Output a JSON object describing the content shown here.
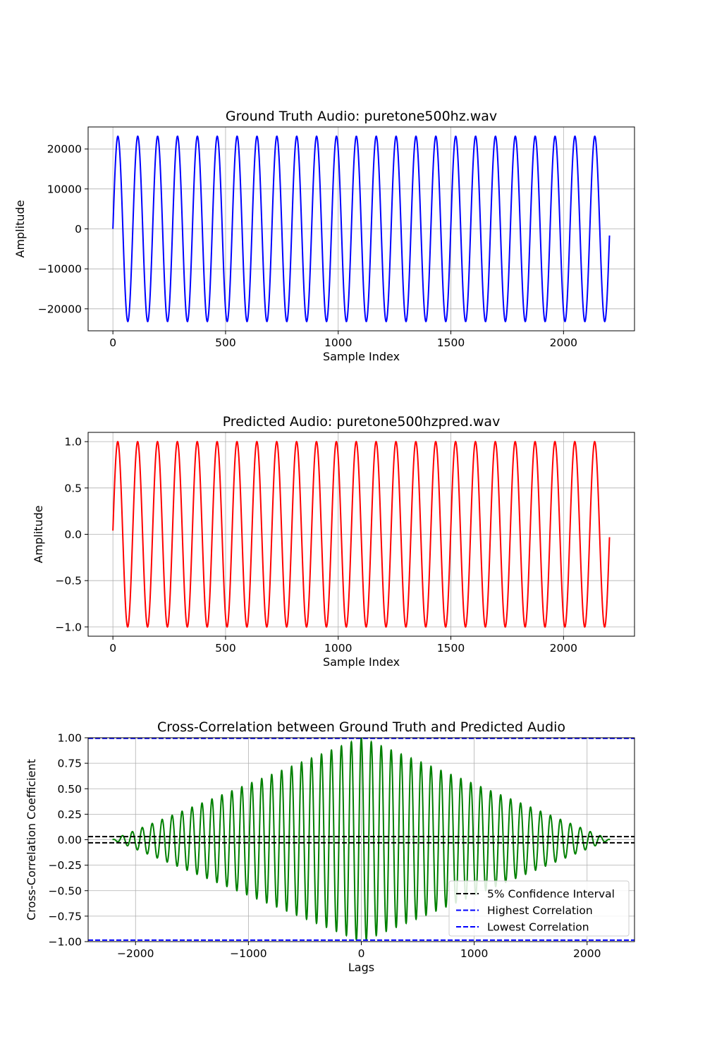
{
  "chart_data": [
    {
      "type": "line",
      "title": "Ground Truth Audio: puretone500hz.wav",
      "xlabel": "Sample Index",
      "ylabel": "Amplitude",
      "xlim": [
        -110,
        2315
      ],
      "ylim": [
        -25500,
        25500
      ],
      "xticks": [
        0,
        500,
        1000,
        1500,
        2000
      ],
      "yticks": [
        -20000,
        -10000,
        0,
        10000,
        20000
      ],
      "xtick_labels": [
        "0",
        "500",
        "1000",
        "1500",
        "2000"
      ],
      "ytick_labels": [
        "−20000",
        "−10000",
        "0",
        "10000",
        "20000"
      ],
      "grid": true,
      "series": [
        {
          "color": "#0000ff",
          "signal": {
            "form": "sine",
            "amplitude": 23170,
            "frequency_hz": 500,
            "sample_rate_hz": 44100,
            "phase": 0,
            "x_start": 0,
            "x_end": 2204
          }
        }
      ]
    },
    {
      "type": "line",
      "title": "Predicted Audio: puretone500hzpred.wav",
      "xlabel": "Sample Index",
      "ylabel": "Amplitude",
      "xlim": [
        -110,
        2315
      ],
      "ylim": [
        -1.1,
        1.1
      ],
      "xticks": [
        0,
        500,
        1000,
        1500,
        2000
      ],
      "yticks": [
        -1.0,
        -0.5,
        0.0,
        0.5,
        1.0
      ],
      "xtick_labels": [
        "0",
        "500",
        "1000",
        "1500",
        "2000"
      ],
      "ytick_labels": [
        "−1.0",
        "−0.5",
        "0.0",
        "0.5",
        "1.0"
      ],
      "grid": true,
      "series": [
        {
          "color": "#ff0000",
          "signal": {
            "form": "sine",
            "amplitude": 1.0,
            "frequency_hz": 500,
            "sample_rate_hz": 44100,
            "phase": 0.04,
            "x_start": 0,
            "x_end": 2204
          }
        }
      ]
    },
    {
      "type": "line",
      "title": "Cross-Correlation between Ground Truth and Predicted Audio",
      "xlabel": "Lags",
      "ylabel": "Cross-Correlation Coefficient",
      "xlim": [
        -2420,
        2420
      ],
      "ylim": [
        -1.0,
        1.0
      ],
      "xticks": [
        -2000,
        -1000,
        0,
        1000,
        2000
      ],
      "yticks": [
        -1.0,
        -0.75,
        -0.5,
        -0.25,
        0.0,
        0.25,
        0.5,
        0.75,
        1.0
      ],
      "xtick_labels": [
        "−2000",
        "−1000",
        "0",
        "1000",
        "2000"
      ],
      "ytick_labels": [
        "−1.00",
        "−0.75",
        "−0.50",
        "−0.25",
        "0.00",
        "0.25",
        "0.50",
        "0.75",
        "1.00"
      ],
      "grid": true,
      "legend_position": "lower-right",
      "series": [
        {
          "color": "#008000",
          "signal": {
            "form": "triangular-envelope-cosine",
            "peak": 1.0,
            "frequency_hz": 500,
            "sample_rate_hz": 44100,
            "lag_start": -2204,
            "lag_end": 2204
          }
        }
      ],
      "reference_lines": [
        {
          "name": "5% Confidence Interval",
          "y": 0.03,
          "color": "#000000",
          "style": "dashed"
        },
        {
          "y": -0.03,
          "color": "#000000",
          "style": "dashed"
        },
        {
          "name": "Highest Correlation",
          "y": 0.995,
          "color": "#0000ff",
          "style": "dashed"
        },
        {
          "name": "Lowest Correlation",
          "y": -0.985,
          "color": "#0000ff",
          "style": "dashed"
        }
      ],
      "legend_entries": [
        "5% Confidence Interval",
        "Highest Correlation",
        "Lowest Correlation"
      ]
    }
  ]
}
